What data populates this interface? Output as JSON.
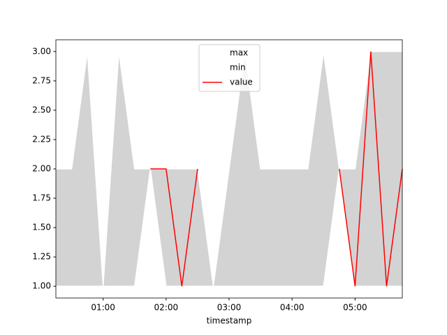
{
  "chart_data": {
    "type": "line",
    "x_label": "timestamp",
    "x": [
      "00:15",
      "00:30",
      "00:45",
      "01:00",
      "01:15",
      "01:30",
      "01:45",
      "02:00",
      "02:15",
      "02:30",
      "02:45",
      "03:00",
      "03:15",
      "03:30",
      "03:45",
      "04:00",
      "04:15",
      "04:30",
      "04:45",
      "05:00",
      "05:15",
      "05:30",
      "05:45"
    ],
    "series": [
      {
        "name": "max",
        "color": "#ffffff",
        "values": [
          2,
          2,
          3,
          1,
          3,
          2,
          2,
          2,
          2,
          2,
          1,
          2,
          3,
          2,
          2,
          2,
          2,
          3,
          2,
          2,
          3,
          3,
          3
        ]
      },
      {
        "name": "min",
        "color": "#ffffff",
        "values": [
          1,
          1,
          1,
          1,
          1,
          1,
          2,
          1,
          1,
          1,
          1,
          1,
          1,
          1,
          1,
          1,
          1,
          1,
          2,
          1,
          1,
          1,
          1
        ]
      },
      {
        "name": "value",
        "color": "#ff0000",
        "values": [
          null,
          null,
          null,
          null,
          null,
          null,
          2,
          2,
          1,
          2,
          null,
          null,
          null,
          null,
          null,
          null,
          null,
          null,
          2,
          1,
          3,
          1,
          2
        ]
      }
    ],
    "fill_color": "#d3d3d3",
    "xlim": [
      "00:15",
      "05:45"
    ],
    "xticks": [
      "01:00",
      "02:00",
      "03:00",
      "04:00",
      "05:00"
    ],
    "ylim": [
      0.9,
      3.1
    ],
    "yticks": [
      {
        "value": 1,
        "label": "1.00"
      },
      {
        "value": 1.25,
        "label": "1.25"
      },
      {
        "value": 1.5,
        "label": "1.50"
      },
      {
        "value": 1.75,
        "label": "1.75"
      },
      {
        "value": 2,
        "label": "2.00"
      },
      {
        "value": 2.25,
        "label": "2.25"
      },
      {
        "value": 2.5,
        "label": "2.50"
      },
      {
        "value": 2.75,
        "label": "2.75"
      },
      {
        "value": 3,
        "label": "3.00"
      }
    ],
    "legend": "upper center"
  }
}
